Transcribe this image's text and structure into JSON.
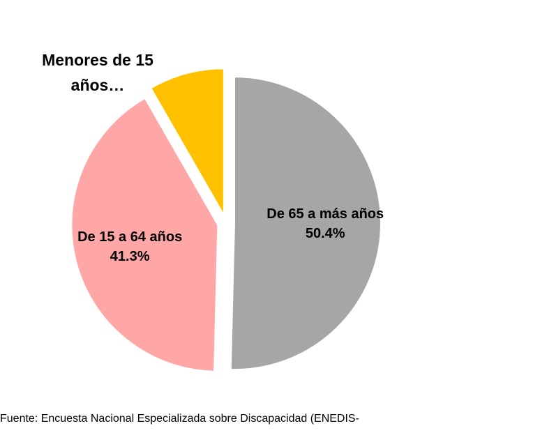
{
  "chart_data": {
    "type": "pie",
    "categories": [
      "De 65 a más años",
      "De 15 a 64 años",
      "Menores de 15 años…"
    ],
    "values": [
      50.4,
      41.3,
      8.3
    ],
    "value_labels": [
      "50.4%",
      "41.3%",
      null
    ],
    "colors": [
      "#a6a6a6",
      "#ffa7a7",
      "#ffc000"
    ],
    "source": "Fuente: Encuesta Nacional Especializada sobre Discapacidad (ENEDIS-"
  }
}
